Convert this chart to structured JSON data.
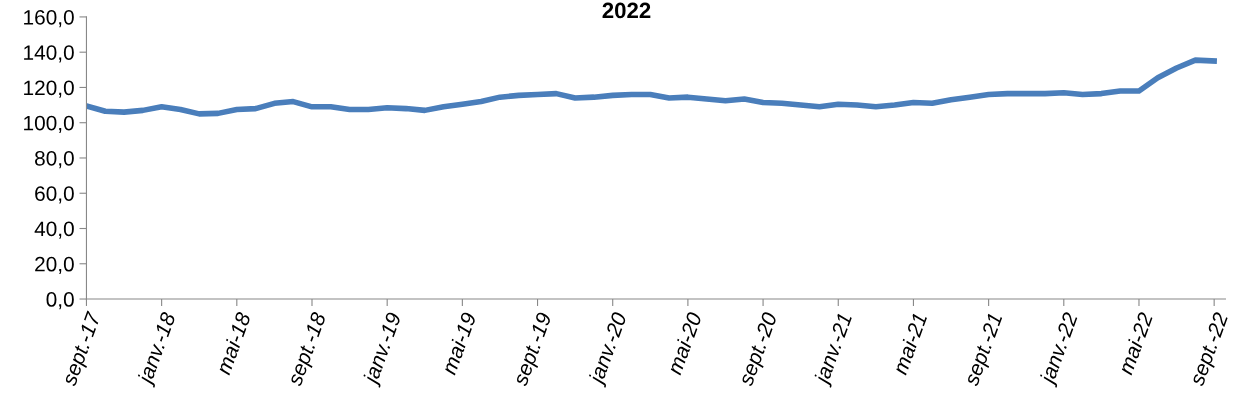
{
  "chart_data": {
    "type": "line",
    "title": "2022",
    "categories": [
      "sept.-17",
      null,
      null,
      null,
      "janv.-18",
      null,
      null,
      null,
      "mai-18",
      null,
      null,
      null,
      "sept.-18",
      null,
      null,
      null,
      "janv.-19",
      null,
      null,
      null,
      "mai-19",
      null,
      null,
      null,
      "sept.-19",
      null,
      null,
      null,
      "janv.-20",
      null,
      null,
      null,
      "mai-20",
      null,
      null,
      null,
      "sept.-20",
      null,
      null,
      null,
      "janv.-21",
      null,
      null,
      null,
      "mai-21",
      null,
      null,
      null,
      "sept.-21",
      null,
      null,
      null,
      "janv.-22",
      null,
      null,
      null,
      "mai-22",
      null,
      null,
      null,
      "sept.-22"
    ],
    "series": [
      {
        "color": "#4a7ebb",
        "values": [
          109.5,
          106.5,
          106,
          107,
          109,
          107.5,
          105,
          105.3,
          107.5,
          108,
          111,
          112,
          109,
          109,
          107.5,
          107.5,
          108.5,
          108,
          107,
          109,
          110.5,
          112,
          114.5,
          115.5,
          116,
          116.5,
          114,
          114.5,
          115.5,
          116,
          116,
          114,
          114.5,
          113.5,
          112.5,
          113.5,
          111.5,
          111,
          110,
          109,
          110.5,
          110,
          109,
          110,
          111.5,
          111,
          113,
          114.5,
          116,
          116.5,
          116.5,
          116.5,
          117,
          116,
          116.5,
          118,
          118,
          125.5,
          131,
          135.5,
          135
        ]
      }
    ],
    "ylim": [
      0,
      160
    ],
    "yticks": [
      {
        "value": 0,
        "label": "0,0"
      },
      {
        "value": 20,
        "label": "20,0"
      },
      {
        "value": 40,
        "label": "40,0"
      },
      {
        "value": 60,
        "label": "60,0"
      },
      {
        "value": 80,
        "label": "80,0"
      },
      {
        "value": 100,
        "label": "100,0"
      },
      {
        "value": 120,
        "label": "120,0"
      },
      {
        "value": 140,
        "label": "140,0"
      },
      {
        "value": 160,
        "label": "160,0"
      }
    ],
    "grid": false,
    "legend": false,
    "marker": "none",
    "line_style": "solid"
  }
}
